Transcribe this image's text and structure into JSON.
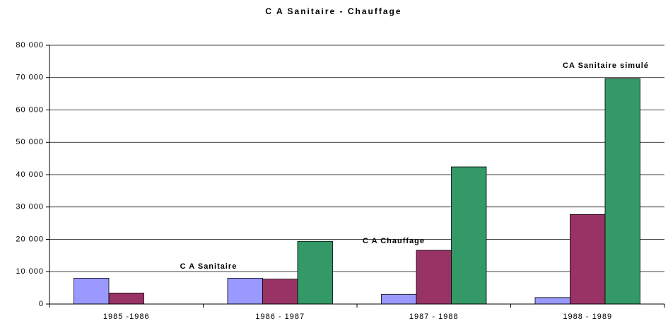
{
  "chart_data": {
    "type": "bar",
    "title": "C A Sanitaire - Chauffage",
    "categories": [
      "1985 -1986",
      "1986 - 1987",
      "1987 - 1988",
      "1988 - 1989"
    ],
    "series": [
      {
        "name": "C A Sanitaire",
        "color": "#9999ff",
        "values": [
          8000,
          8000,
          3000,
          2000
        ]
      },
      {
        "name": "C A Chauffage",
        "color": "#993366",
        "values": [
          3400,
          7700,
          16600,
          27700
        ]
      },
      {
        "name": "CA Sanitaire simulé",
        "color": "#339966",
        "values": [
          null,
          19400,
          42400,
          69700
        ]
      }
    ],
    "ylim": [
      0,
      80000
    ],
    "yticks": [
      0,
      {
        "value": 10000,
        "label": "10 000"
      },
      {
        "value": 20000,
        "label": "20 000"
      },
      {
        "value": 30000,
        "label": "30 000"
      },
      {
        "value": 40000,
        "label": "40 000"
      },
      {
        "value": 50000,
        "label": "50 000"
      },
      {
        "value": 60000,
        "label": "60 000"
      },
      {
        "value": 70000,
        "label": "70 000"
      },
      {
        "value": 80000,
        "label": "80 000"
      }
    ],
    "grid": true
  }
}
